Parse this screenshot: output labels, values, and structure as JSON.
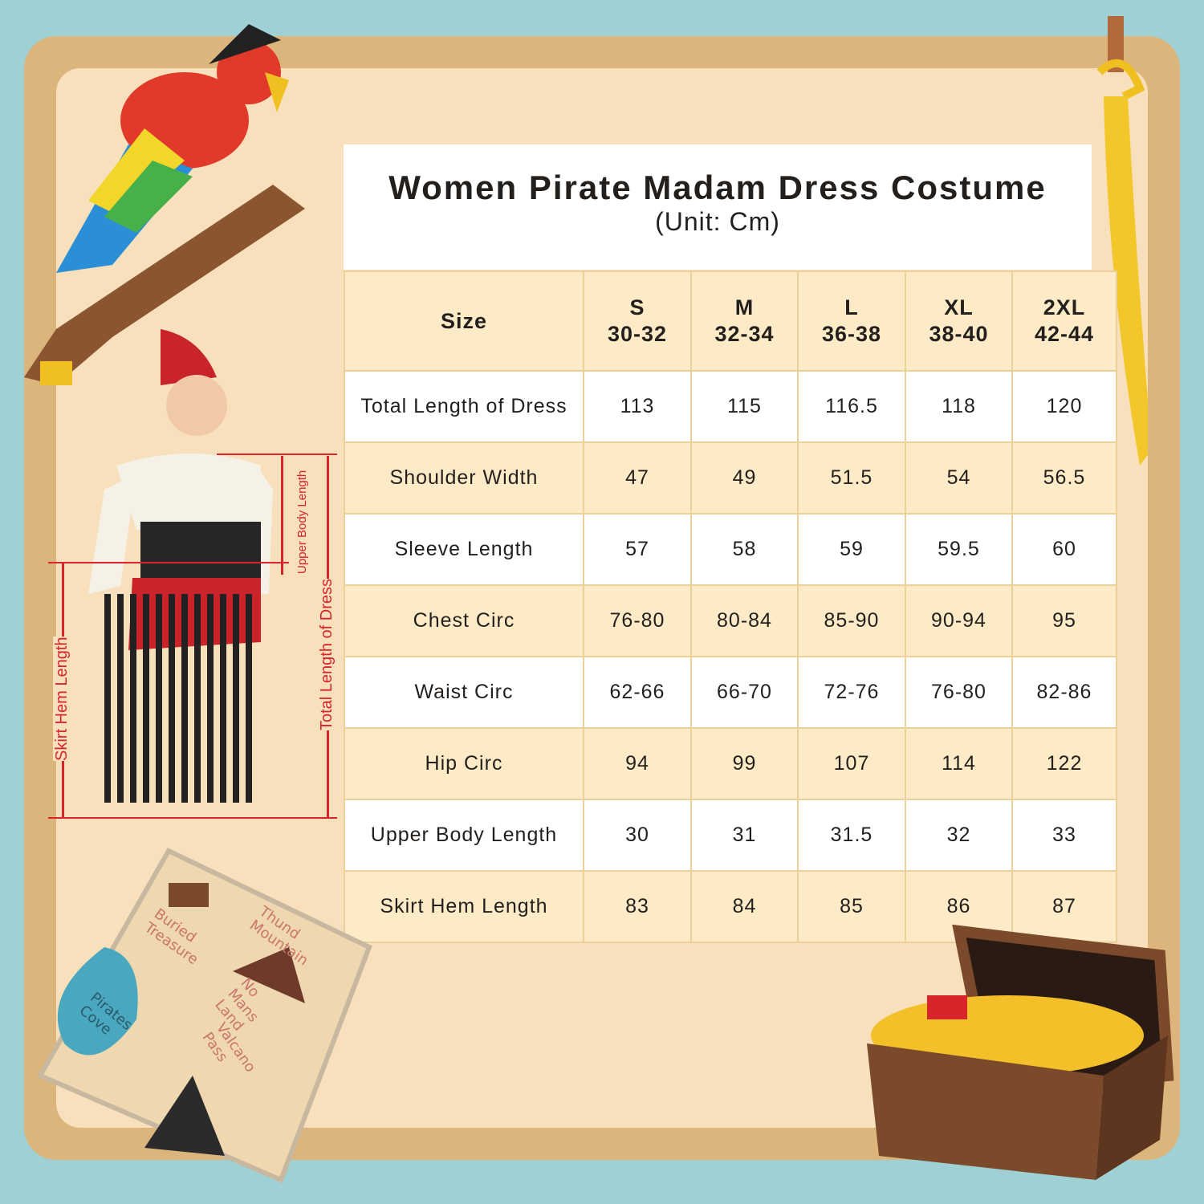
{
  "title": "Women Pirate Madam Dress Costume",
  "unit": "(Unit: Cm)",
  "table": {
    "header": [
      "Size",
      "S\n30-32",
      "M\n32-34",
      "L\n36-38",
      "XL\n38-40",
      "2XL\n42-44"
    ],
    "rows": [
      [
        "Total Length of Dress",
        "113",
        "115",
        "116.5",
        "118",
        "120"
      ],
      [
        "Shoulder Width",
        "47",
        "49",
        "51.5",
        "54",
        "56.5"
      ],
      [
        "Sleeve Length",
        "57",
        "58",
        "59",
        "59.5",
        "60"
      ],
      [
        "Chest Circ",
        "76-80",
        "80-84",
        "85-90",
        "90-94",
        "95"
      ],
      [
        "Waist Circ",
        "62-66",
        "66-70",
        "72-76",
        "76-80",
        "82-86"
      ],
      [
        "Hip Circ",
        "94",
        "99",
        "107",
        "114",
        "122"
      ],
      [
        "Upper Body Length",
        "30",
        "31",
        "31.5",
        "32",
        "33"
      ],
      [
        "Skirt Hem Length",
        "83",
        "84",
        "85",
        "86",
        "87"
      ]
    ]
  },
  "measurements": {
    "upper": "Upper Body Length",
    "total": "Total Length of Dress",
    "skirt": "Skirt Hem Length"
  },
  "map_labels": [
    "Buried Treasure",
    "Thund Mountain",
    "No Mans Land",
    "Pirates Cove",
    "Valcano Pass"
  ],
  "colors": {
    "background": "#9fd1d4",
    "parchment": "#f7e0bb",
    "header_row": "#fdebc8",
    "measure_red": "#d8242a"
  }
}
